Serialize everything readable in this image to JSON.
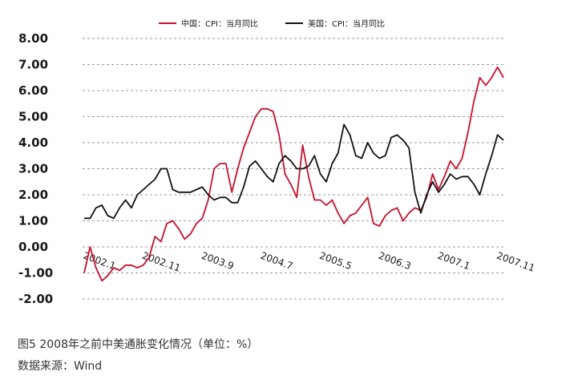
{
  "chart_data": {
    "type": "line",
    "title": "",
    "xlabel": "",
    "ylabel": "",
    "ylim": [
      -2.0,
      8.0
    ],
    "y_ticks": [
      "8.00",
      "7.00",
      "6.00",
      "5.00",
      "4.00",
      "3.00",
      "2.00",
      "1.00",
      "0.00",
      "-1.00",
      "-2.00"
    ],
    "grid": "horizontal dashed",
    "legend_position": "top",
    "x_tick_labels": [
      "2002.1",
      "2002.11",
      "2003.9",
      "2004.7",
      "2005.5",
      "2006.3",
      "2007.1",
      "2007.11"
    ],
    "categories": [
      "2002.1",
      "2002.2",
      "2002.3",
      "2002.4",
      "2002.5",
      "2002.6",
      "2002.7",
      "2002.8",
      "2002.9",
      "2002.10",
      "2002.11",
      "2002.12",
      "2003.1",
      "2003.2",
      "2003.3",
      "2003.4",
      "2003.5",
      "2003.6",
      "2003.7",
      "2003.8",
      "2003.9",
      "2003.10",
      "2003.11",
      "2003.12",
      "2004.1",
      "2004.2",
      "2004.3",
      "2004.4",
      "2004.5",
      "2004.6",
      "2004.7",
      "2004.8",
      "2004.9",
      "2004.10",
      "2004.11",
      "2004.12",
      "2005.1",
      "2005.2",
      "2005.3",
      "2005.4",
      "2005.5",
      "2005.6",
      "2005.7",
      "2005.8",
      "2005.9",
      "2005.10",
      "2005.11",
      "2005.12",
      "2006.1",
      "2006.2",
      "2006.3",
      "2006.4",
      "2006.5",
      "2006.6",
      "2006.7",
      "2006.8",
      "2006.9",
      "2006.10",
      "2006.11",
      "2006.12",
      "2007.1",
      "2007.2",
      "2007.3",
      "2007.4",
      "2007.5",
      "2007.6",
      "2007.7",
      "2007.8",
      "2007.9",
      "2007.10",
      "2007.11",
      "2007.12"
    ],
    "series": [
      {
        "name": "中国：CPI：当月同比",
        "color": "#c8102e",
        "values": [
          -1.0,
          0.0,
          -0.8,
          -1.3,
          -1.1,
          -0.8,
          -0.9,
          -0.7,
          -0.7,
          -0.8,
          -0.7,
          -0.4,
          0.4,
          0.2,
          0.9,
          1.0,
          0.7,
          0.3,
          0.5,
          0.9,
          1.1,
          1.8,
          3.0,
          3.2,
          3.2,
          2.1,
          3.0,
          3.8,
          4.4,
          5.0,
          5.3,
          5.3,
          5.2,
          4.3,
          2.8,
          2.4,
          1.9,
          3.9,
          2.7,
          1.8,
          1.8,
          1.6,
          1.8,
          1.3,
          0.9,
          1.2,
          1.3,
          1.6,
          1.9,
          0.9,
          0.8,
          1.2,
          1.4,
          1.5,
          1.0,
          1.3,
          1.5,
          1.4,
          1.9,
          2.8,
          2.2,
          2.7,
          3.3,
          3.0,
          3.4,
          4.4,
          5.6,
          6.5,
          6.2,
          6.5,
          6.9,
          6.5
        ]
      },
      {
        "name": "美国：CPI：当月同比",
        "color": "#111111",
        "values": [
          1.1,
          1.1,
          1.5,
          1.6,
          1.2,
          1.1,
          1.5,
          1.8,
          1.5,
          2.0,
          2.2,
          2.4,
          2.6,
          3.0,
          3.0,
          2.2,
          2.1,
          2.1,
          2.1,
          2.2,
          2.3,
          2.0,
          1.8,
          1.9,
          1.9,
          1.7,
          1.7,
          2.3,
          3.1,
          3.3,
          3.0,
          2.7,
          2.5,
          3.2,
          3.5,
          3.3,
          3.0,
          3.0,
          3.1,
          3.5,
          2.8,
          2.5,
          3.2,
          3.6,
          4.7,
          4.3,
          3.5,
          3.4,
          4.0,
          3.6,
          3.4,
          3.5,
          4.2,
          4.3,
          4.1,
          3.8,
          2.1,
          1.3,
          2.0,
          2.5,
          2.1,
          2.4,
          2.8,
          2.6,
          2.7,
          2.7,
          2.4,
          2.0,
          2.8,
          3.5,
          4.3,
          4.1
        ]
      }
    ]
  },
  "caption": {
    "title": "图5 2008年之前中美通胀变化情况（单位：%）",
    "source": "数据来源：Wind"
  }
}
